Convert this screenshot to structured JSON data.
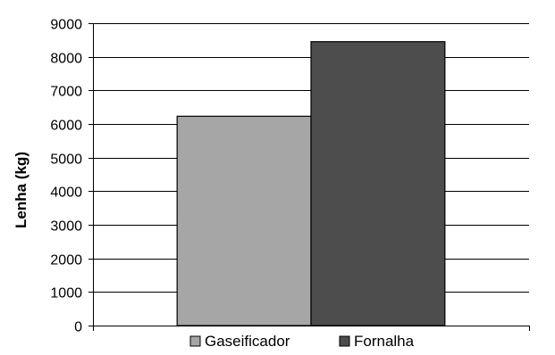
{
  "chart_data": {
    "type": "bar",
    "title": "",
    "xlabel": "",
    "ylabel": "Lenha (kg)",
    "ylim": [
      0,
      9000
    ],
    "yticks": [
      0,
      1000,
      2000,
      3000,
      4000,
      5000,
      6000,
      7000,
      8000,
      9000
    ],
    "grid": true,
    "legend_position": "bottom",
    "series": [
      {
        "name": "Gaseificador",
        "values": [
          6230
        ],
        "color": "#A6A6A6"
      },
      {
        "name": "Fornalha",
        "values": [
          8450
        ],
        "color": "#4D4D4D"
      }
    ]
  }
}
